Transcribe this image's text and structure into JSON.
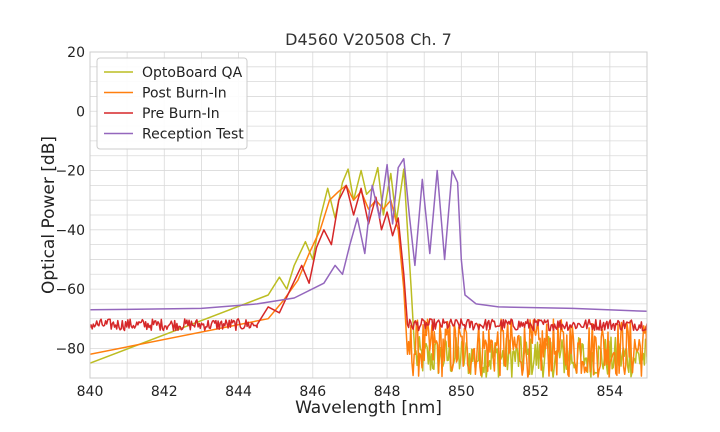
{
  "chart_data": {
    "type": "line",
    "title": "D4560 V20508 Ch. 7",
    "xlabel": "Wavelength [nm]",
    "ylabel": "Optical Power [dB]",
    "xlim": [
      840,
      855
    ],
    "ylim": [
      -90,
      20
    ],
    "xticks": [
      840,
      842,
      844,
      846,
      848,
      850,
      852,
      854
    ],
    "yticks": [
      20,
      0,
      -20,
      -40,
      -60,
      -80
    ],
    "grid": true,
    "legend_position": "top-left",
    "noise_floor_note": "OptoBoard QA, Post Burn-In and Pre Burn-In show a dense noise floor between about -90 and -70 dB outside the emission band",
    "series": [
      {
        "name": "OptoBoard QA",
        "color": "#bcbd22",
        "points": [
          [
            840,
            -85
          ],
          [
            844.8,
            -62
          ],
          [
            845.1,
            -56
          ],
          [
            845.3,
            -60
          ],
          [
            845.5,
            -52
          ],
          [
            845.8,
            -44
          ],
          [
            846.0,
            -50
          ],
          [
            846.2,
            -36
          ],
          [
            846.4,
            -26
          ],
          [
            846.6,
            -36
          ],
          [
            846.8,
            -24
          ],
          [
            846.95,
            -19.5
          ],
          [
            847.1,
            -30
          ],
          [
            847.3,
            -20
          ],
          [
            847.45,
            -28
          ],
          [
            847.6,
            -26
          ],
          [
            847.75,
            -19
          ],
          [
            847.9,
            -35
          ],
          [
            848.1,
            -21
          ],
          [
            848.25,
            -37
          ],
          [
            848.45,
            -19.5
          ],
          [
            848.55,
            -40
          ],
          [
            848.65,
            -60
          ],
          [
            848.75,
            -82
          ],
          [
            855,
            -85
          ]
        ]
      },
      {
        "name": "Post Burn-In",
        "color": "#ff7f0e",
        "points": [
          [
            840,
            -82
          ],
          [
            844.8,
            -70
          ],
          [
            845.2,
            -64
          ],
          [
            845.6,
            -57
          ],
          [
            845.9,
            -48
          ],
          [
            846.2,
            -40
          ],
          [
            846.45,
            -30
          ],
          [
            846.7,
            -27
          ],
          [
            846.9,
            -25
          ],
          [
            847.1,
            -30
          ],
          [
            847.3,
            -27
          ],
          [
            847.5,
            -33
          ],
          [
            847.7,
            -30
          ],
          [
            847.9,
            -33
          ],
          [
            848.1,
            -30
          ],
          [
            848.3,
            -40
          ],
          [
            848.45,
            -60
          ],
          [
            848.55,
            -82
          ],
          [
            855,
            -82
          ]
        ]
      },
      {
        "name": "Pre Burn-In",
        "color": "#d62728",
        "points": [
          [
            840,
            -73
          ],
          [
            844.5,
            -72
          ],
          [
            844.8,
            -66
          ],
          [
            845.1,
            -68
          ],
          [
            845.4,
            -60
          ],
          [
            845.7,
            -52
          ],
          [
            845.9,
            -58
          ],
          [
            846.1,
            -46
          ],
          [
            846.3,
            -40
          ],
          [
            846.5,
            -45
          ],
          [
            846.7,
            -30
          ],
          [
            846.9,
            -25
          ],
          [
            847.1,
            -35
          ],
          [
            847.3,
            -26
          ],
          [
            847.5,
            -38
          ],
          [
            847.7,
            -29
          ],
          [
            847.85,
            -40
          ],
          [
            848.0,
            -34
          ],
          [
            848.15,
            -42
          ],
          [
            848.3,
            -36
          ],
          [
            848.45,
            -55
          ],
          [
            848.55,
            -72
          ],
          [
            855,
            -72
          ]
        ]
      },
      {
        "name": "Reception Test",
        "color": "#9467bd",
        "points": [
          [
            840,
            -67
          ],
          [
            843,
            -66.5
          ],
          [
            844.5,
            -65
          ],
          [
            845.5,
            -63
          ],
          [
            846.3,
            -58
          ],
          [
            846.6,
            -52
          ],
          [
            846.8,
            -55
          ],
          [
            847.0,
            -45
          ],
          [
            847.2,
            -36
          ],
          [
            847.4,
            -48
          ],
          [
            847.6,
            -25
          ],
          [
            847.8,
            -36
          ],
          [
            848.0,
            -18
          ],
          [
            848.15,
            -38
          ],
          [
            848.3,
            -19
          ],
          [
            848.45,
            -16
          ],
          [
            848.6,
            -35
          ],
          [
            848.75,
            -52
          ],
          [
            848.95,
            -23
          ],
          [
            849.15,
            -48
          ],
          [
            849.35,
            -20
          ],
          [
            849.55,
            -50
          ],
          [
            849.75,
            -20
          ],
          [
            849.9,
            -24
          ],
          [
            850.0,
            -50
          ],
          [
            850.1,
            -62
          ],
          [
            850.4,
            -65
          ],
          [
            851,
            -66
          ],
          [
            853,
            -66.5
          ],
          [
            855,
            -67.5
          ]
        ]
      }
    ]
  }
}
